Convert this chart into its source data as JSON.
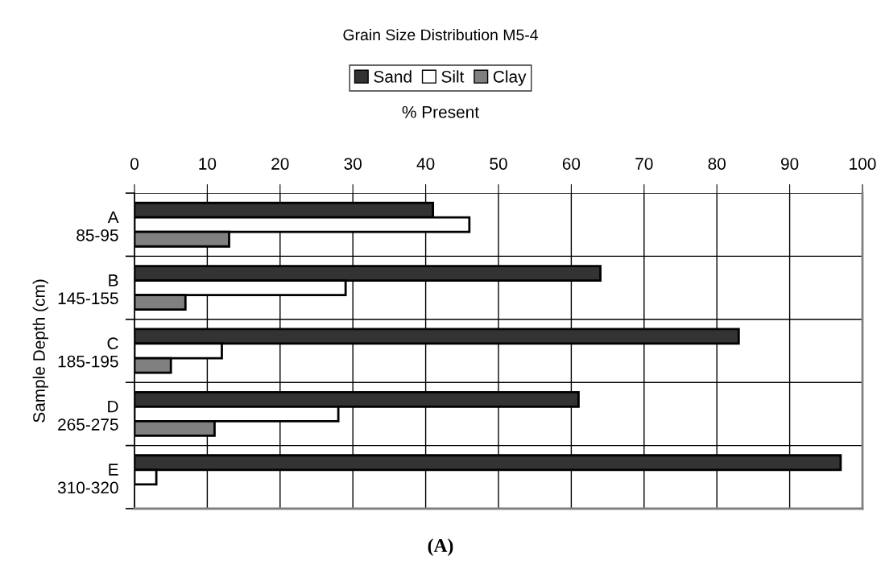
{
  "chart_data": {
    "type": "bar",
    "orientation": "horizontal",
    "title": "Grain Size Distribution M5-4",
    "xlabel": "% Present",
    "ylabel": "Sample Depth (cm)",
    "categories": [
      "A\n85-95",
      "B\n145-155",
      "C\n185-195",
      "D\n265-275",
      "E\n310-320"
    ],
    "series": [
      {
        "name": "Sand",
        "color": "#333333",
        "values": [
          41,
          64,
          83,
          61,
          97
        ]
      },
      {
        "name": "Silt",
        "color": "#ffffff",
        "values": [
          46,
          29,
          12,
          28,
          3
        ]
      },
      {
        "name": "Clay",
        "color": "#808080",
        "values": [
          13,
          7,
          5,
          11,
          null
        ]
      }
    ],
    "xlim": [
      0,
      100
    ],
    "xticks": [
      0,
      10,
      20,
      30,
      40,
      50,
      60,
      70,
      80,
      90,
      100
    ],
    "grid": true,
    "legend": "top",
    "annotations": [
      "(A)"
    ]
  }
}
